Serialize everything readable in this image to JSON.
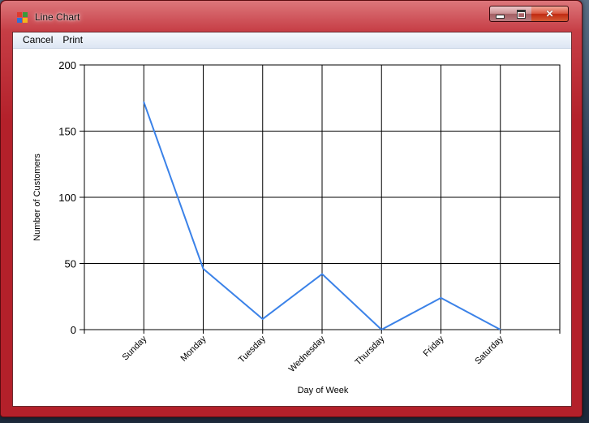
{
  "window": {
    "title": "Line Chart",
    "controls": {
      "minimize": "minimize",
      "maximize": "maximize",
      "close": "close"
    }
  },
  "menu": {
    "items": [
      "Cancel",
      "Print"
    ]
  },
  "colors": {
    "line": "#3b82e8",
    "titlebar": "#b3202a",
    "grid": "#000000"
  },
  "chart_data": {
    "type": "line",
    "title": "",
    "xlabel": "Day of Week",
    "ylabel": "Number of Customers",
    "categories": [
      "Sunday",
      "Monday",
      "Tuesday",
      "Wednesday",
      "Thursday",
      "Friday",
      "Saturday"
    ],
    "series": [
      {
        "name": "Customers",
        "values": [
          172,
          46,
          8,
          42,
          0,
          24,
          0
        ]
      }
    ],
    "ylim": [
      0,
      200
    ],
    "yticks": [
      "0",
      "50",
      "100",
      "150",
      "200"
    ],
    "grid": true
  }
}
